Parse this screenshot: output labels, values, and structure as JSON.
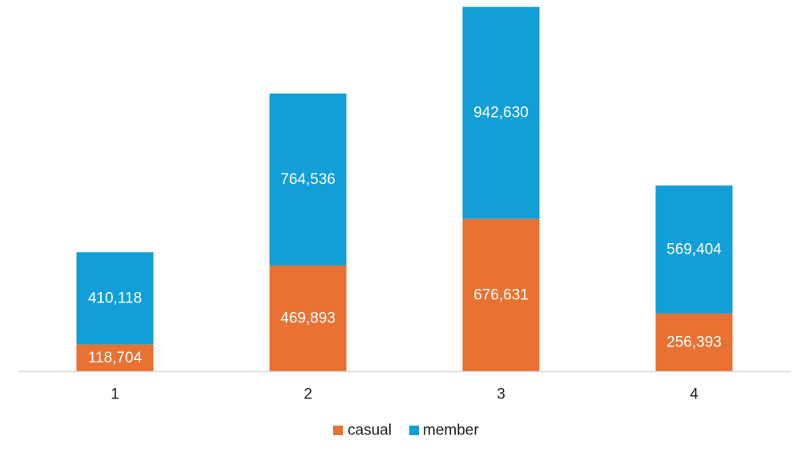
{
  "chart_data": {
    "type": "bar",
    "stacked": true,
    "categories": [
      "1",
      "2",
      "3",
      "4"
    ],
    "series": [
      {
        "name": "casual",
        "color": "#E97132",
        "values": [
          118704,
          469893,
          676631,
          256393
        ],
        "labels": [
          "118,704",
          "469,893",
          "676,631",
          "256,393"
        ]
      },
      {
        "name": "member",
        "color": "#129FD7",
        "values": [
          410118,
          764536,
          942630,
          569404
        ],
        "labels": [
          "410,118",
          "764,536",
          "942,630",
          "569,404"
        ]
      }
    ],
    "ylim": [
      0,
      1650000
    ],
    "grid": false,
    "legend_position": "bottom",
    "axis_color": "#D9D9D9"
  }
}
